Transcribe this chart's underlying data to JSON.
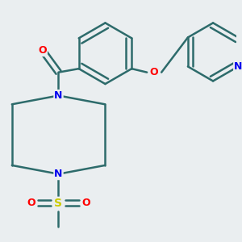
{
  "background_color": "#eaeef0",
  "bond_color": "#2d6b6b",
  "bond_width": 1.8,
  "atom_colors": {
    "O": "#ff0000",
    "N": "#0000ee",
    "S": "#cccc00",
    "C": "#2d6b6b"
  },
  "font_size": 9,
  "figsize": [
    3.0,
    3.0
  ],
  "dpi": 100
}
